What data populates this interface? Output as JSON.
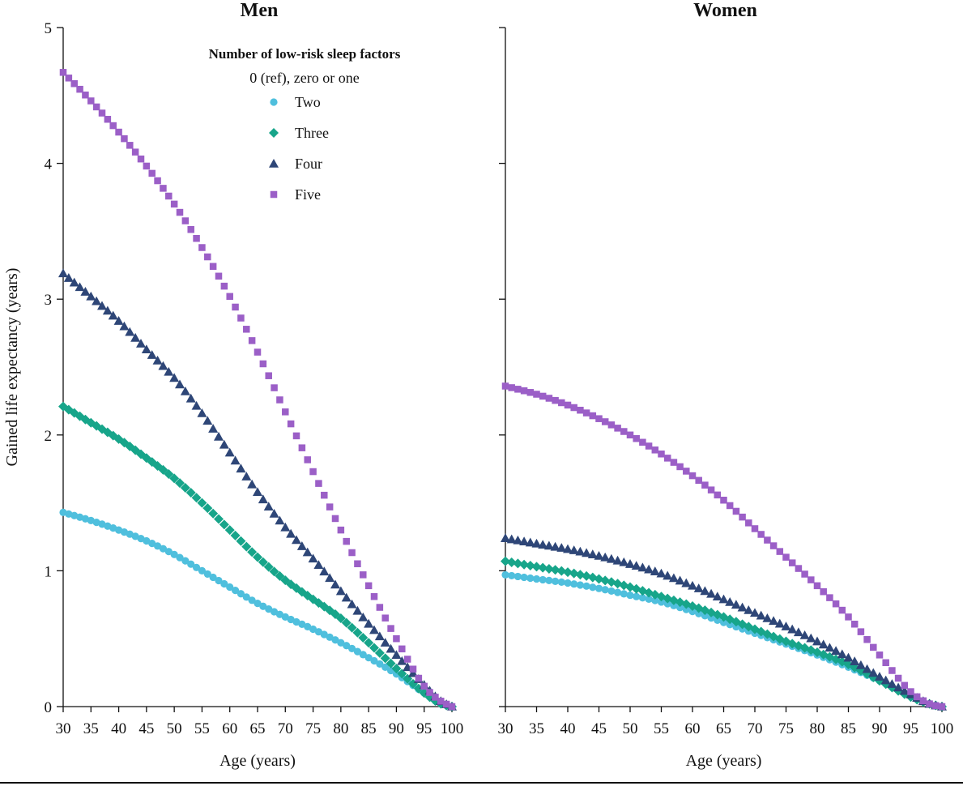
{
  "chart_data": {
    "type": "scatter",
    "ylabel": "Gained life expectancy (years)",
    "ylim": [
      0,
      5
    ],
    "yticks": [
      0,
      1,
      2,
      3,
      4,
      5
    ],
    "xlim": [
      30,
      100
    ],
    "xticks": [
      30,
      35,
      40,
      45,
      50,
      55,
      60,
      65,
      70,
      75,
      80,
      85,
      90,
      95,
      100
    ],
    "legend": {
      "title": "Number of low-risk sleep factors",
      "reference": "0 (ref), zero or one",
      "placement": "top-left panel, upper center"
    },
    "series_styles": [
      {
        "name": "Two",
        "color": "#4fbfdd",
        "marker": "circle"
      },
      {
        "name": "Three",
        "color": "#17a58a",
        "marker": "diamond"
      },
      {
        "name": "Four",
        "color": "#2e4677",
        "marker": "triangle"
      },
      {
        "name": "Five",
        "color": "#9b5fc7",
        "marker": "square"
      }
    ],
    "panels": [
      {
        "title": "Men",
        "xlabel": "Age (years)",
        "x": [
          30,
          35,
          40,
          45,
          50,
          55,
          60,
          65,
          70,
          75,
          80,
          85,
          90,
          95,
          98,
          100
        ],
        "series": [
          {
            "name": "Two",
            "values": [
              1.43,
              1.37,
              1.3,
              1.22,
              1.12,
              1.0,
              0.88,
              0.76,
              0.66,
              0.57,
              0.47,
              0.36,
              0.24,
              0.1,
              0.02,
              0.0
            ]
          },
          {
            "name": "Three",
            "values": [
              2.21,
              2.09,
              1.97,
              1.83,
              1.68,
              1.5,
              1.3,
              1.1,
              0.93,
              0.79,
              0.65,
              0.47,
              0.28,
              0.1,
              0.02,
              0.0
            ]
          },
          {
            "name": "Four",
            "values": [
              3.19,
              3.02,
              2.84,
              2.63,
              2.42,
              2.16,
              1.87,
              1.58,
              1.32,
              1.09,
              0.85,
              0.61,
              0.38,
              0.16,
              0.04,
              0.0
            ]
          },
          {
            "name": "Five",
            "values": [
              4.67,
              4.46,
              4.23,
              3.98,
              3.7,
              3.38,
              3.02,
              2.61,
              2.17,
              1.73,
              1.3,
              0.89,
              0.5,
              0.15,
              0.04,
              0.0
            ]
          }
        ]
      },
      {
        "title": "Women",
        "xlabel": "Age (years)",
        "x": [
          30,
          35,
          40,
          45,
          50,
          55,
          60,
          65,
          70,
          75,
          80,
          85,
          90,
          95,
          98,
          100
        ],
        "series": [
          {
            "name": "Two",
            "values": [
              0.97,
              0.94,
              0.91,
              0.87,
              0.82,
              0.77,
              0.7,
              0.62,
              0.54,
              0.46,
              0.38,
              0.29,
              0.19,
              0.08,
              0.02,
              0.0
            ]
          },
          {
            "name": "Three",
            "values": [
              1.07,
              1.03,
              0.99,
              0.94,
              0.88,
              0.81,
              0.74,
              0.66,
              0.57,
              0.48,
              0.4,
              0.31,
              0.19,
              0.07,
              0.02,
              0.0
            ]
          },
          {
            "name": "Four",
            "values": [
              1.24,
              1.2,
              1.16,
              1.11,
              1.05,
              0.98,
              0.89,
              0.79,
              0.69,
              0.59,
              0.48,
              0.36,
              0.22,
              0.09,
              0.02,
              0.0
            ]
          },
          {
            "name": "Five",
            "values": [
              2.36,
              2.3,
              2.22,
              2.12,
              2.0,
              1.86,
              1.7,
              1.52,
              1.31,
              1.1,
              0.89,
              0.66,
              0.38,
              0.11,
              0.02,
              0.0
            ]
          }
        ]
      }
    ]
  }
}
